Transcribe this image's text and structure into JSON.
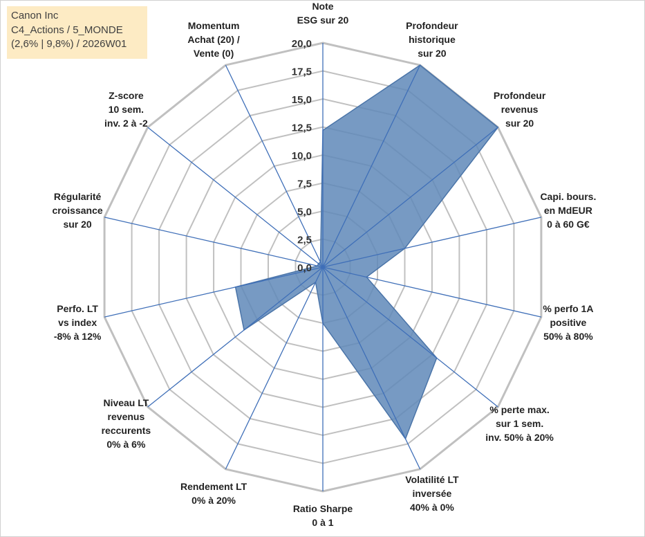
{
  "info": {
    "company": "Canon Inc",
    "portfolio": "C4_Actions / 5_MONDE",
    "period": "(2,6% | 9,8%) / 2026W01"
  },
  "colors": {
    "fill": "#5f88b8",
    "stroke": "#4a74a8",
    "spoke": "#3f6fb8",
    "grid": "#c0c0c0",
    "info_bg": "#fdebc4"
  },
  "chart_data": {
    "type": "radar",
    "title": "",
    "rmax": 20,
    "ticks": [
      "0,0",
      "2,5",
      "5,0",
      "7,5",
      "10,0",
      "12,5",
      "15,0",
      "17,5",
      "20,0"
    ],
    "tick_values": [
      0,
      2.5,
      5,
      7.5,
      10,
      12.5,
      15,
      17.5,
      20
    ],
    "axes": [
      {
        "label": [
          "Note",
          "ESG sur 20"
        ],
        "value": 12.2
      },
      {
        "label": [
          "Profondeur",
          "historique",
          "sur 20"
        ],
        "value": 20
      },
      {
        "label": [
          "Profondeur",
          "revenus",
          "sur 20"
        ],
        "value": 20
      },
      {
        "label": [
          "Capi. bours.",
          "en MdEUR",
          "0 à 60 G€"
        ],
        "value": 7.5
      },
      {
        "label": [
          "% perfo 1A",
          "positive",
          "50% à 80%"
        ],
        "value": 4.0
      },
      {
        "label": [
          "% perte max.",
          "sur 1 sem.",
          "inv. 50% à 20%"
        ],
        "value": 13.0
      },
      {
        "label": [
          "Volatilité LT",
          "inversée",
          "40% à 0%"
        ],
        "value": 17.0
      },
      {
        "label": [
          "Ratio Sharpe",
          "0 à 1"
        ],
        "value": 5.0
      },
      {
        "label": [
          "Rendement LT",
          "0% à 20%"
        ],
        "value": 1.5
      },
      {
        "label": [
          "Niveau LT",
          "revenus",
          "reccurents",
          "0% à 6%"
        ],
        "value": 9.0
      },
      {
        "label": [
          "Perfo. LT",
          "vs index",
          "-8% à 12%"
        ],
        "value": 8.0
      },
      {
        "label": [
          "Régularité",
          "croissance",
          "sur 20"
        ],
        "value": 0.5
      },
      {
        "label": [
          "Z-score",
          "10 sem.",
          "inv. 2 à -2"
        ],
        "value": 0.5
      },
      {
        "label": [
          "Momentum",
          "Achat (20) /",
          "Vente (0)"
        ],
        "value": 0.5
      }
    ]
  }
}
